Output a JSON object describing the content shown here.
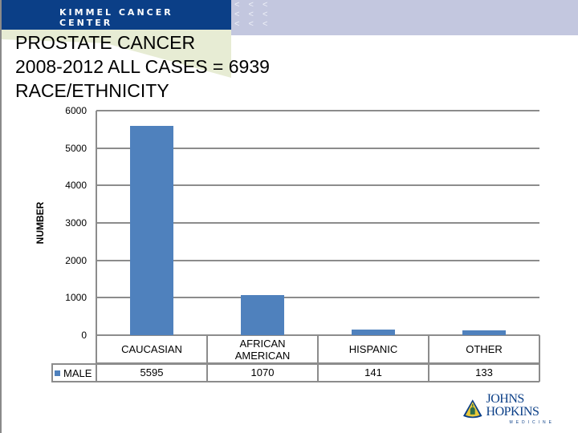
{
  "header": {
    "org_name": "KIMMEL CANCER CENTER",
    "chevrons": [
      "< < <",
      "< < <",
      "< < <"
    ]
  },
  "title": {
    "line1": "PROSTATE  CANCER",
    "line2": "2008-2012 ALL CASES = 6939",
    "line3": "RACE/ETHNICITY"
  },
  "logo": {
    "main": "JOHNS HOPKINS",
    "sub": "MEDICINE"
  },
  "colors": {
    "bar": "#4f81bd",
    "header_blue": "#0b3f87",
    "header_lavender": "#c3c7df",
    "grid": "#8c8c8c"
  },
  "chart_data": {
    "type": "bar",
    "title": "PROSTATE CANCER 2008-2012 ALL CASES = 6939 RACE/ETHNICITY",
    "xlabel": "",
    "ylabel": "NUMBER",
    "categories": [
      "CAUCASIAN",
      "AFRICAN AMERICAN",
      "HISPANIC",
      "OTHER"
    ],
    "category_lines": [
      [
        "CAUCASIAN"
      ],
      [
        "AFRICAN",
        "AMERICAN"
      ],
      [
        "HISPANIC"
      ],
      [
        "OTHER"
      ]
    ],
    "series": [
      {
        "name": "MALE",
        "values": [
          5595,
          1070,
          141,
          133
        ],
        "color": "#4f81bd"
      }
    ],
    "ylim": [
      0,
      6000
    ],
    "yticks": [
      "0",
      "1000",
      "2000",
      "3000",
      "4000",
      "5000",
      "6000"
    ],
    "grid": true,
    "legend_position": "data-table",
    "data_table": true
  }
}
